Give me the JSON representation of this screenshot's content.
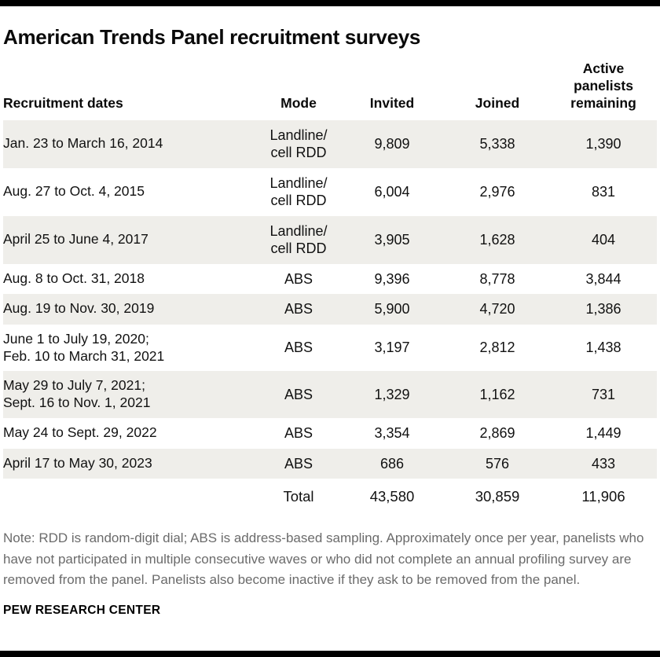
{
  "title": "American Trends Panel recruitment surveys",
  "colors": {
    "stripe": "#efeeea",
    "bar": "#000000",
    "note_text": "#6b6b6b"
  },
  "chart_data": {
    "type": "table",
    "title": "American Trends Panel recruitment surveys",
    "columns": [
      "Recruitment dates",
      "Mode",
      "Invited",
      "Joined",
      "Active\npanelists\nremaining"
    ],
    "rows": [
      {
        "dates": "Jan. 23 to March 16, 2014",
        "mode": "Landline/\ncell RDD",
        "invited": "9,809",
        "joined": "5,338",
        "remaining": "1,390"
      },
      {
        "dates": "Aug. 27 to Oct. 4, 2015",
        "mode": "Landline/\ncell RDD",
        "invited": "6,004",
        "joined": "2,976",
        "remaining": "831"
      },
      {
        "dates": "April 25 to June 4, 2017",
        "mode": "Landline/\ncell RDD",
        "invited": "3,905",
        "joined": "1,628",
        "remaining": "404"
      },
      {
        "dates": "Aug. 8 to Oct. 31, 2018",
        "mode": "ABS",
        "invited": "9,396",
        "joined": "8,778",
        "remaining": "3,844"
      },
      {
        "dates": "Aug. 19 to Nov. 30, 2019",
        "mode": "ABS",
        "invited": "5,900",
        "joined": "4,720",
        "remaining": "1,386"
      },
      {
        "dates": "June 1 to July 19, 2020;\nFeb. 10 to March 31, 2021",
        "mode": "ABS",
        "invited": "3,197",
        "joined": "2,812",
        "remaining": "1,438"
      },
      {
        "dates": "May 29 to July 7, 2021;\nSept. 16 to Nov. 1, 2021",
        "mode": "ABS",
        "invited": "1,329",
        "joined": "1,162",
        "remaining": "731"
      },
      {
        "dates": "May 24 to Sept. 29, 2022",
        "mode": "ABS",
        "invited": "3,354",
        "joined": "2,869",
        "remaining": "1,449"
      },
      {
        "dates": "April 17 to May 30, 2023",
        "mode": "ABS",
        "invited": "686",
        "joined": "576",
        "remaining": "433"
      }
    ],
    "total": {
      "label": "Total",
      "invited": "43,580",
      "joined": "30,859",
      "remaining": "11,906"
    }
  },
  "note": "Note: RDD is random-digit dial; ABS is address-based sampling. Approximately once per year, panelists who have not participated in multiple consecutive waves or who did not complete an annual profiling survey are removed from the panel. Panelists also become inactive if they ask to be removed from the panel.",
  "source": "PEW RESEARCH CENTER"
}
